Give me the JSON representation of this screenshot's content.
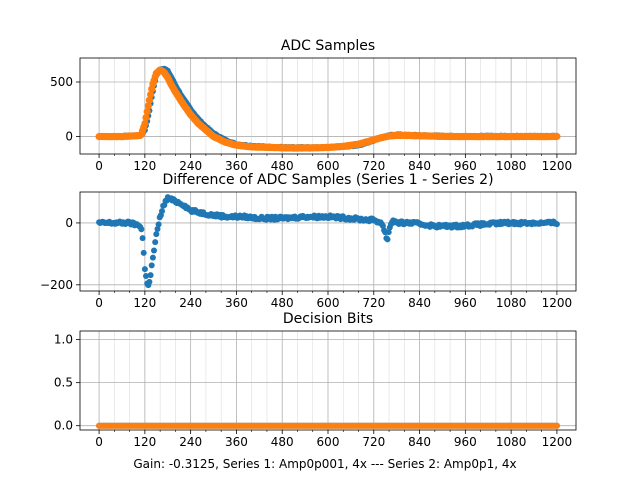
{
  "figure": {
    "xlabel": "Gain: -0.3125, Series 1: Amp0p001, 4x --- Series 2: Amp0p1, 4x"
  },
  "colors": {
    "series1": "#1f77b4",
    "series2": "#ff7f0e",
    "grid": "#b0b0b0"
  },
  "chart_data": [
    {
      "type": "scatter",
      "title": "ADC Samples",
      "xlim": [
        -50,
        1250
      ],
      "ylim": [
        -160,
        720
      ],
      "xticks": [
        0,
        120,
        240,
        360,
        480,
        600,
        720,
        840,
        960,
        1080,
        1200
      ],
      "xtick_labels": [
        "0",
        "120",
        "240",
        "360",
        "480",
        "600",
        "720",
        "840",
        "960",
        "1080",
        "1200"
      ],
      "yticks": [
        0,
        500
      ],
      "ytick_labels": [
        "0",
        "500"
      ],
      "grid": true,
      "series": [
        {
          "color": "#1f77b4",
          "x": [
            0,
            60,
            110,
            120,
            130,
            140,
            150,
            160,
            170,
            180,
            190,
            200,
            220,
            240,
            260,
            280,
            300,
            330,
            360,
            400,
            450,
            500,
            550,
            600,
            640,
            680,
            700,
            720,
            740,
            760,
            780,
            800,
            860,
            920,
            1000,
            1080,
            1150,
            1200
          ],
          "y": [
            0,
            5,
            10,
            60,
            200,
            400,
            560,
            615,
            625,
            600,
            540,
            470,
            350,
            250,
            160,
            90,
            30,
            -30,
            -70,
            -85,
            -95,
            -100,
            -100,
            -100,
            -95,
            -80,
            -60,
            -35,
            -10,
            10,
            20,
            15,
            10,
            5,
            5,
            5,
            5,
            5
          ]
        },
        {
          "color": "#ff7f0e",
          "x": [
            0,
            60,
            110,
            120,
            130,
            140,
            150,
            160,
            170,
            180,
            190,
            200,
            220,
            240,
            260,
            280,
            300,
            330,
            360,
            400,
            450,
            500,
            550,
            600,
            640,
            680,
            700,
            720,
            740,
            760,
            780,
            800,
            860,
            920,
            1000,
            1080,
            1150,
            1200
          ],
          "y": [
            0,
            0,
            10,
            120,
            300,
            470,
            580,
            610,
            590,
            540,
            470,
            410,
            300,
            200,
            120,
            60,
            0,
            -50,
            -80,
            -95,
            -100,
            -105,
            -105,
            -100,
            -90,
            -70,
            -50,
            -30,
            -10,
            5,
            10,
            10,
            5,
            0,
            0,
            0,
            0,
            0
          ]
        }
      ]
    },
    {
      "type": "scatter",
      "title": "Difference of ADC Samples (Series 1 - Series 2)",
      "xlim": [
        -50,
        1250
      ],
      "ylim": [
        -220,
        100
      ],
      "xticks": [
        0,
        120,
        240,
        360,
        480,
        600,
        720,
        840,
        960,
        1080,
        1200
      ],
      "xtick_labels": [
        "0",
        "120",
        "240",
        "360",
        "480",
        "600",
        "720",
        "840",
        "960",
        "1080",
        "1200"
      ],
      "yticks": [
        -200,
        0
      ],
      "ytick_labels": [
        "−200",
        "0"
      ],
      "grid": true,
      "series": [
        {
          "color": "#1f77b4",
          "x": [
            0,
            40,
            80,
            110,
            115,
            120,
            125,
            130,
            135,
            140,
            150,
            160,
            170,
            180,
            190,
            200,
            220,
            240,
            260,
            280,
            300,
            340,
            380,
            420,
            480,
            540,
            600,
            660,
            700,
            720,
            740,
            750,
            755,
            760,
            770,
            780,
            820,
            880,
            940,
            1000,
            1060,
            1120,
            1200
          ],
          "y": [
            0,
            0,
            0,
            -10,
            -60,
            -150,
            -190,
            -200,
            -170,
            -120,
            -40,
            20,
            60,
            80,
            75,
            70,
            60,
            40,
            35,
            30,
            25,
            20,
            20,
            15,
            15,
            20,
            20,
            15,
            10,
            10,
            0,
            -30,
            -60,
            -20,
            10,
            0,
            0,
            -10,
            -10,
            -5,
            0,
            0,
            0
          ]
        }
      ]
    },
    {
      "type": "scatter",
      "title": "Decision Bits",
      "xlim": [
        -50,
        1250
      ],
      "ylim": [
        -0.05,
        1.1
      ],
      "xticks": [
        0,
        120,
        240,
        360,
        480,
        600,
        720,
        840,
        960,
        1080,
        1200
      ],
      "xtick_labels": [
        "0",
        "120",
        "240",
        "360",
        "480",
        "600",
        "720",
        "840",
        "960",
        "1080",
        "1200"
      ],
      "yticks": [
        0.0,
        0.5,
        1.0
      ],
      "ytick_labels": [
        "0.0",
        "0.5",
        "1.0"
      ],
      "grid": true,
      "series": [
        {
          "color": "#1f77b4",
          "x": [
            0,
            1200
          ],
          "y": [
            0,
            0
          ]
        },
        {
          "color": "#ff7f0e",
          "x": [
            0,
            1200
          ],
          "y": [
            0,
            0
          ]
        }
      ]
    }
  ]
}
